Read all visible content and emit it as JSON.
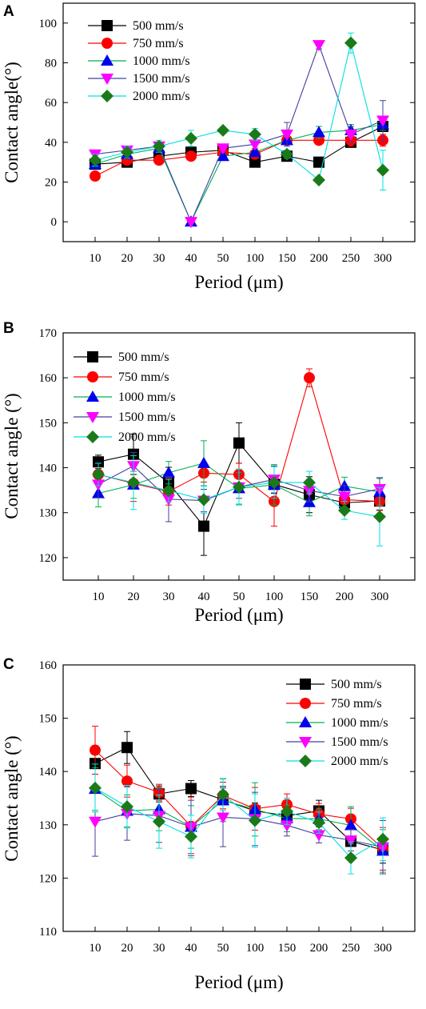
{
  "colors": {
    "500 mm/s": "#000000",
    "750 mm/s": "#ff0000",
    "1000 mm/s": "#00b050",
    "1500 mm/s": "#4040a0",
    "2000 mm/s": "#00e0e0"
  },
  "chart_data": [
    {
      "type": "line",
      "panel_label": "A",
      "xlabel": "Period (μm)",
      "ylabel": "Contact angle(°)",
      "ylim": [
        -10,
        110
      ],
      "yticks": [
        0,
        20,
        40,
        60,
        80,
        100
      ],
      "categories": [
        "10",
        "20",
        "30",
        "40",
        "50",
        "100",
        "150",
        "200",
        "250",
        "300"
      ],
      "legend_position": "top-left",
      "series": [
        {
          "name": "500 mm/s",
          "values": [
            29,
            30,
            33,
            35,
            36,
            30,
            33,
            30,
            40,
            48
          ],
          "errors": [
            1,
            1,
            1,
            1,
            1,
            1,
            1,
            1,
            2,
            2
          ]
        },
        {
          "name": "750 mm/s",
          "values": [
            23,
            31,
            31,
            33,
            35,
            34,
            41,
            41,
            41,
            41
          ],
          "errors": [
            1,
            1,
            1,
            1,
            1,
            1,
            2,
            2,
            3,
            3
          ]
        },
        {
          "name": "1000 mm/s",
          "values": [
            29,
            34,
            37,
            0,
            33,
            35,
            41,
            45,
            46,
            49
          ],
          "errors": [
            1,
            1,
            1,
            1,
            1,
            1,
            2,
            3,
            3,
            3
          ]
        },
        {
          "name": "1500 mm/s",
          "values": [
            34,
            36,
            38,
            0,
            37,
            39,
            44,
            89,
            44,
            51
          ],
          "errors": [
            2,
            2,
            2,
            1,
            2,
            2,
            6,
            2,
            4,
            10
          ]
        },
        {
          "name": "2000 mm/s",
          "values": [
            31,
            35,
            38,
            42,
            46,
            44,
            34,
            21,
            90,
            26
          ],
          "errors": [
            3,
            3,
            3,
            4,
            1,
            3,
            2,
            1,
            5,
            10
          ]
        }
      ]
    },
    {
      "type": "line",
      "panel_label": "B",
      "xlabel": "Period (μm)",
      "ylabel": "Contact angle (°)",
      "ylim": [
        115,
        170
      ],
      "yticks": [
        120,
        130,
        140,
        150,
        160,
        170
      ],
      "categories": [
        "10",
        "20",
        "30",
        "40",
        "50",
        "100",
        "150",
        "200",
        "300"
      ],
      "legend_position": "top-left",
      "series": [
        {
          "name": "500 mm/s",
          "values": [
            141.3,
            143,
            136.6,
            127,
            145.5,
            136.3,
            134,
            132.2,
            132.6
          ],
          "errors": [
            1.5,
            4.5,
            3.5,
            6.5,
            4.5,
            2,
            4,
            2,
            2
          ]
        },
        {
          "name": "750 mm/s",
          "values": [
            138.5,
            136.5,
            134.7,
            138.8,
            138.5,
            132.5,
            160,
            132.9,
            132.5
          ],
          "errors": [
            2.5,
            4,
            3,
            2,
            2.5,
            5.5,
            2,
            2,
            2
          ]
        },
        {
          "name": "1000 mm/s",
          "values": [
            134.3,
            136.2,
            138.9,
            141,
            135.4,
            136.2,
            132.3,
            135.9,
            134.6
          ],
          "errors": [
            3,
            3,
            2.5,
            5,
            3.5,
            4.5,
            3,
            2,
            3
          ]
        },
        {
          "name": "1500 mm/s",
          "values": [
            136.3,
            140.4,
            133,
            132.7,
            135.7,
            137.4,
            134.9,
            133.6,
            135.3
          ],
          "errors": [
            3,
            3,
            5,
            2.5,
            2.5,
            3,
            2.5,
            2.5,
            2.5
          ]
        },
        {
          "name": "2000 mm/s",
          "values": [
            138.5,
            136.7,
            134.9,
            132.9,
            135.7,
            136.7,
            136.7,
            130.5,
            129.1
          ],
          "errors": [
            2.5,
            6,
            2.5,
            3,
            4,
            3.5,
            2.5,
            2,
            6.5
          ]
        }
      ]
    },
    {
      "type": "line",
      "panel_label": "C",
      "xlabel": "Period (μm)",
      "ylabel": "Contact angle (°)",
      "ylim": [
        110,
        160
      ],
      "yticks": [
        110,
        120,
        130,
        140,
        150,
        160
      ],
      "categories": [
        "10",
        "20",
        "30",
        "40",
        "50",
        "100",
        "150",
        "200",
        "250",
        "300"
      ],
      "legend_position": "top-right",
      "series": [
        {
          "name": "500 mm/s",
          "values": [
            141.5,
            144.5,
            135.8,
            136.8,
            134.7,
            132.6,
            131.7,
            132.6,
            126.9,
            125.3
          ],
          "errors": [
            2,
            3,
            1.5,
            1.5,
            2.5,
            1.5,
            2,
            2,
            2.5,
            2.5
          ]
        },
        {
          "name": "750 mm/s",
          "values": [
            144,
            138.2,
            136.1,
            129.7,
            135.5,
            133,
            133.8,
            132,
            131.1,
            125.5
          ],
          "errors": [
            4.5,
            3,
            1.5,
            5.5,
            2.5,
            4,
            2,
            2,
            2,
            4
          ]
        },
        {
          "name": "1000 mm/s",
          "values": [
            136.7,
            132.6,
            132.9,
            129.6,
            134.6,
            132.9,
            131.2,
            131.1,
            129.9,
            125.1
          ],
          "errors": [
            4,
            3,
            4,
            4,
            4,
            5,
            2.5,
            2,
            3.5,
            4
          ]
        },
        {
          "name": "1500 mm/s",
          "values": [
            130.6,
            132.1,
            131.7,
            129.6,
            131.4,
            131.1,
            129.9,
            128.1,
            127.1,
            125.8
          ],
          "errors": [
            6.5,
            5,
            5,
            5,
            5.5,
            5,
            2,
            1.5,
            2,
            5
          ]
        },
        {
          "name": "2000 mm/s",
          "values": [
            136.9,
            133.4,
            130.6,
            127.8,
            135.7,
            130.8,
            132.5,
            130.4,
            123.8,
            127.3
          ],
          "errors": [
            4.5,
            4,
            5,
            4,
            3,
            5,
            2.5,
            2,
            3,
            4
          ]
        }
      ]
    }
  ]
}
